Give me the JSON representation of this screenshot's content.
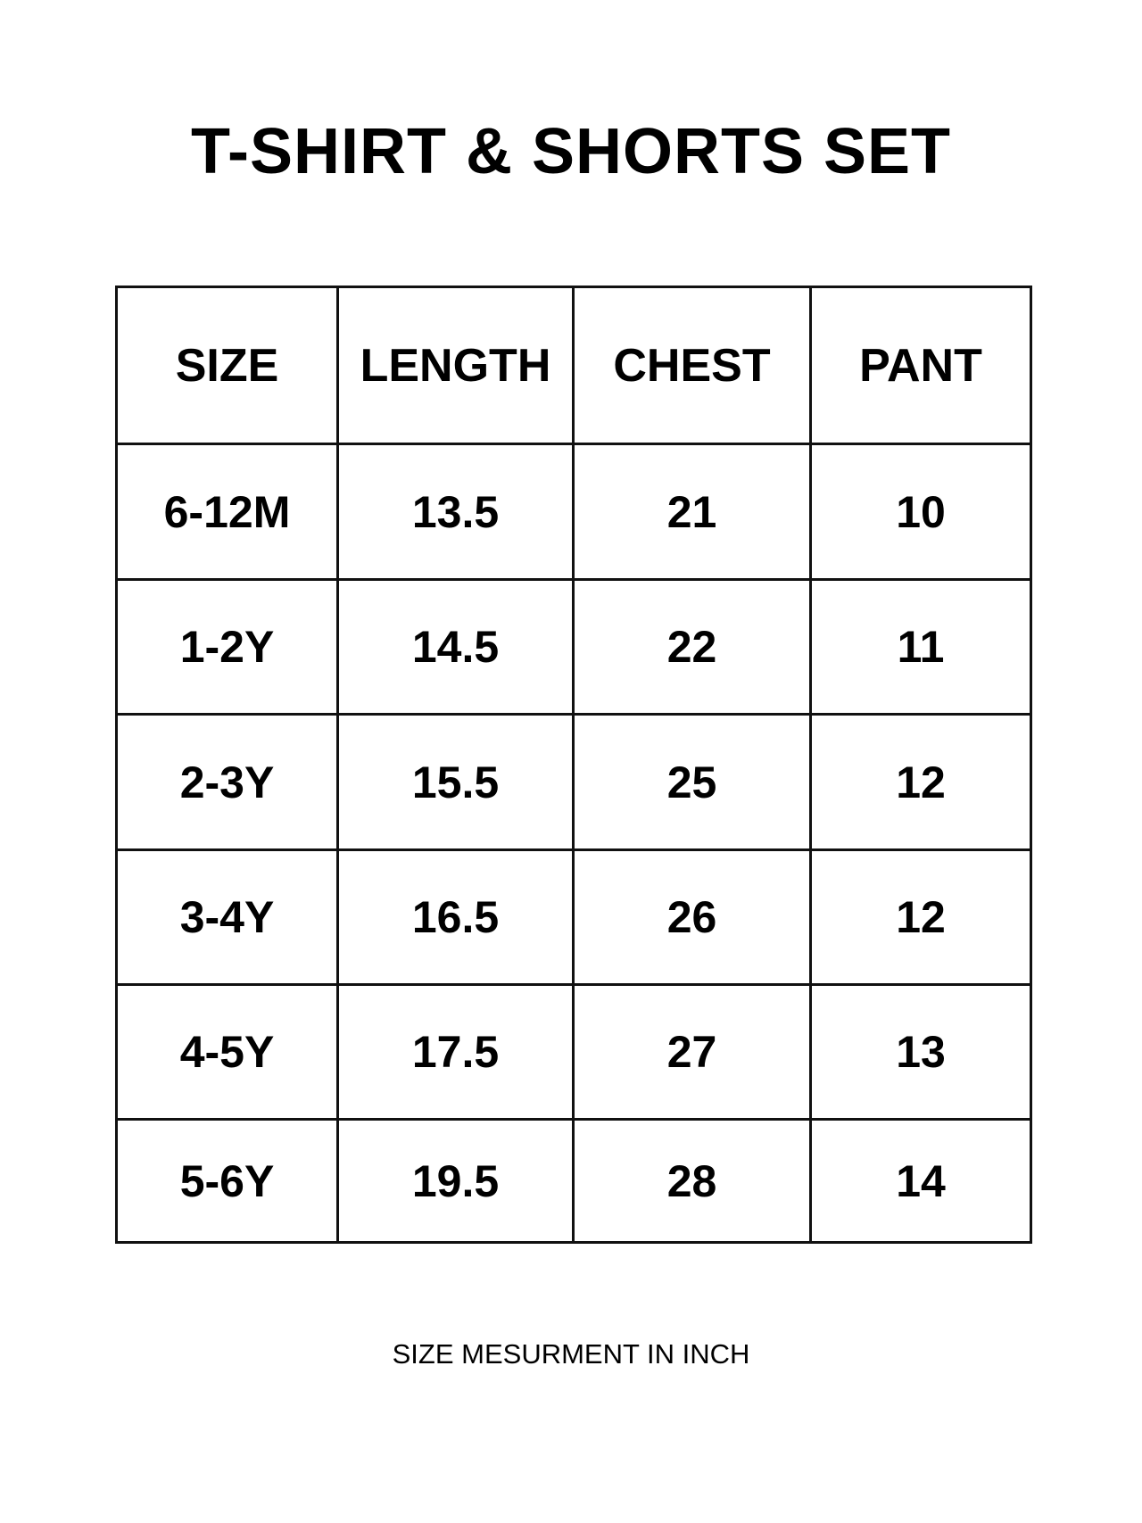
{
  "title": "T-SHIRT & SHORTS SET",
  "table": {
    "headers": [
      "SIZE",
      "LENGTH",
      "CHEST",
      "PANT"
    ],
    "rows": [
      [
        "6-12M",
        "13.5",
        "21",
        "10"
      ],
      [
        "1-2Y",
        "14.5",
        "22",
        "11"
      ],
      [
        "2-3Y",
        "15.5",
        "25",
        "12"
      ],
      [
        "3-4Y",
        "16.5",
        "26",
        "12"
      ],
      [
        "4-5Y",
        "17.5",
        "27",
        "13"
      ],
      [
        "5-6Y",
        "19.5",
        "28",
        "14"
      ]
    ]
  },
  "footer": "SIZE MESURMENT IN INCH"
}
